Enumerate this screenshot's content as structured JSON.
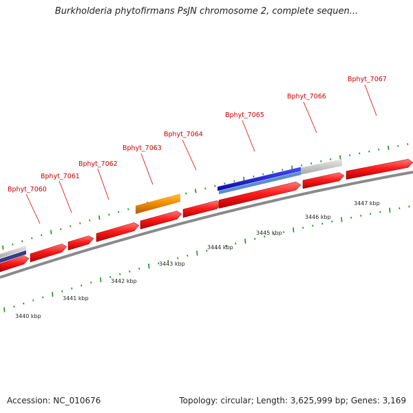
{
  "title": "Burkholderia phytofirmans PsJN chromosome 2, complete sequen...",
  "footer": {
    "accession": "Accession: NC_010676",
    "topology": "Topology: circular; Length: 3,625,999 bp; Genes: 3,169"
  },
  "colors": {
    "forward_gene": "#ee1111",
    "other_gene": "#f08a00",
    "blue_feature": "#1a1ad6",
    "light_blue_feature": "#5a8fd0",
    "gray_feature": "#bdbdbd",
    "dark_purple_feature": "#3a3a8a",
    "backbone": "#8a8a8a",
    "tick": "#1a8a1a",
    "label": "#cc0000"
  },
  "gene_labels": [
    "Bphyt_7060",
    "Bphyt_7061",
    "Bphyt_7062",
    "Bphyt_7063",
    "Bphyt_7064",
    "Bphyt_7065",
    "Bphyt_7066",
    "Bphyt_7067"
  ],
  "kbp_labels": [
    "3440 kbp",
    "3441 kbp",
    "3442 kbp",
    "3443 kbp",
    "3444 kbp",
    "3445 kbp",
    "3446 kbp",
    "3447 kbp"
  ]
}
